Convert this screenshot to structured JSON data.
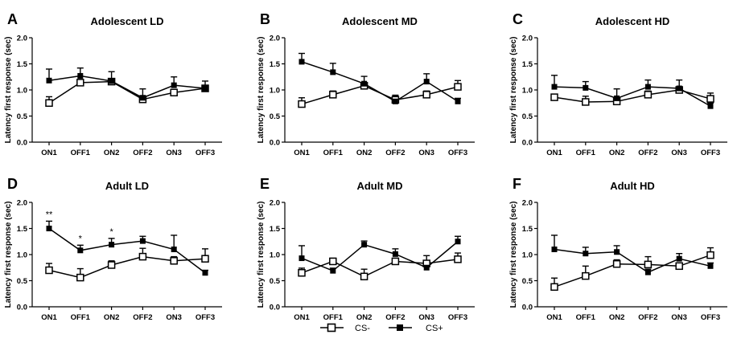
{
  "legend": {
    "cs_minus": "CS-",
    "cs_plus": "CS+"
  },
  "chart_data": [
    {
      "type": "line",
      "letter": "A",
      "title": "Adolescent LD",
      "xlabel": "",
      "ylabel": "Latency first response (sec)",
      "categories": [
        "ON1",
        "OFF1",
        "ON2",
        "OFF2",
        "ON3",
        "OFF3"
      ],
      "ylim": [
        0,
        2.0
      ],
      "yticks": [
        "0.0",
        "0.5",
        "1.0",
        "1.5",
        "2.0"
      ],
      "series": [
        {
          "name": "CS-",
          "values": [
            0.75,
            1.14,
            1.16,
            0.82,
            0.95,
            1.03
          ],
          "errors": [
            0.12,
            0.06,
            0.05,
            0.07,
            0.06,
            0.06
          ]
        },
        {
          "name": "CS+",
          "values": [
            1.18,
            1.27,
            1.17,
            0.85,
            1.09,
            1.03
          ],
          "errors": [
            0.22,
            0.15,
            0.18,
            0.17,
            0.16,
            0.14
          ]
        }
      ],
      "annotations": []
    },
    {
      "type": "line",
      "letter": "B",
      "title": "Adolescent MD",
      "xlabel": "",
      "ylabel": "Latency first response (sec)",
      "categories": [
        "ON1",
        "OFF1",
        "ON2",
        "OFF2",
        "ON3",
        "OFF3"
      ],
      "ylim": [
        0,
        2.0
      ],
      "yticks": [
        "0.0",
        "0.5",
        "1.0",
        "1.5",
        "2.0"
      ],
      "series": [
        {
          "name": "CS-",
          "values": [
            0.73,
            0.91,
            1.08,
            0.81,
            0.91,
            1.06
          ],
          "errors": [
            0.12,
            0.07,
            0.05,
            0.09,
            0.07,
            0.12
          ]
        },
        {
          "name": "CS+",
          "values": [
            1.54,
            1.34,
            1.12,
            0.78,
            1.16,
            0.78
          ],
          "errors": [
            0.16,
            0.17,
            0.14,
            0.1,
            0.15,
            0.06
          ]
        }
      ],
      "annotations": []
    },
    {
      "type": "line",
      "letter": "C",
      "title": "Adolescent HD",
      "xlabel": "",
      "ylabel": "Latency first response (sec)",
      "categories": [
        "ON1",
        "OFF1",
        "ON2",
        "OFF2",
        "ON3",
        "OFF3"
      ],
      "ylim": [
        0,
        2.0
      ],
      "yticks": [
        "0.0",
        "0.5",
        "1.0",
        "1.5",
        "2.0"
      ],
      "series": [
        {
          "name": "CS-",
          "values": [
            0.86,
            0.77,
            0.78,
            0.91,
            1.0,
            0.83
          ],
          "errors": [
            0.06,
            0.11,
            0.06,
            0.07,
            0.04,
            0.11
          ]
        },
        {
          "name": "CS+",
          "values": [
            1.06,
            1.04,
            0.84,
            1.06,
            1.03,
            0.69
          ],
          "errors": [
            0.22,
            0.12,
            0.18,
            0.13,
            0.16,
            0.06
          ]
        }
      ],
      "annotations": []
    },
    {
      "type": "line",
      "letter": "D",
      "title": "Adult LD",
      "xlabel": "",
      "ylabel": "Latency first response (sec)",
      "categories": [
        "ON1",
        "OFF1",
        "ON2",
        "OFF2",
        "ON3",
        "OFF3"
      ],
      "ylim": [
        0,
        2.0
      ],
      "yticks": [
        "0.0",
        "0.5",
        "1.0",
        "1.5",
        "2.0"
      ],
      "series": [
        {
          "name": "CS-",
          "values": [
            0.7,
            0.56,
            0.8,
            0.96,
            0.88,
            0.92
          ],
          "errors": [
            0.13,
            0.17,
            0.08,
            0.16,
            0.08,
            0.19
          ]
        },
        {
          "name": "CS+",
          "values": [
            1.5,
            1.08,
            1.19,
            1.26,
            1.1,
            0.65
          ],
          "errors": [
            0.14,
            0.1,
            0.12,
            0.09,
            0.27,
            0.05
          ]
        }
      ],
      "annotations": [
        {
          "category": "ON1",
          "text": "**"
        },
        {
          "category": "OFF1",
          "text": "*"
        },
        {
          "category": "ON2",
          "text": "*"
        }
      ]
    },
    {
      "type": "line",
      "letter": "E",
      "title": "Adult MD",
      "xlabel": "",
      "ylabel": "Latency first response (sec)",
      "categories": [
        "ON1",
        "OFF1",
        "ON2",
        "OFF2",
        "ON3",
        "OFF3"
      ],
      "ylim": [
        0,
        2.0
      ],
      "yticks": [
        "0.0",
        "0.5",
        "1.0",
        "1.5",
        "2.0"
      ],
      "series": [
        {
          "name": "CS-",
          "values": [
            0.65,
            0.87,
            0.58,
            0.87,
            0.83,
            0.91
          ],
          "errors": [
            0.09,
            0.06,
            0.14,
            0.06,
            0.15,
            0.12
          ]
        },
        {
          "name": "CS+",
          "values": [
            0.93,
            0.69,
            1.19,
            1.01,
            0.75,
            1.25
          ],
          "errors": [
            0.24,
            0.05,
            0.07,
            0.1,
            0.05,
            0.1
          ]
        }
      ],
      "annotations": []
    },
    {
      "type": "line",
      "letter": "F",
      "title": "Adult HD",
      "xlabel": "",
      "ylabel": "Latency first response (sec)",
      "categories": [
        "ON1",
        "OFF1",
        "ON2",
        "OFF2",
        "ON3",
        "OFF3"
      ],
      "ylim": [
        0,
        2.0
      ],
      "yticks": [
        "0.0",
        "0.5",
        "1.0",
        "1.5",
        "2.0"
      ],
      "series": [
        {
          "name": "CS-",
          "values": [
            0.38,
            0.59,
            0.82,
            0.81,
            0.78,
            0.99
          ],
          "errors": [
            0.17,
            0.19,
            0.08,
            0.15,
            0.06,
            0.14
          ]
        },
        {
          "name": "CS+",
          "values": [
            1.1,
            1.02,
            1.05,
            0.66,
            0.92,
            0.78
          ],
          "errors": [
            0.27,
            0.12,
            0.12,
            0.06,
            0.1,
            0.06
          ]
        }
      ],
      "annotations": []
    }
  ]
}
